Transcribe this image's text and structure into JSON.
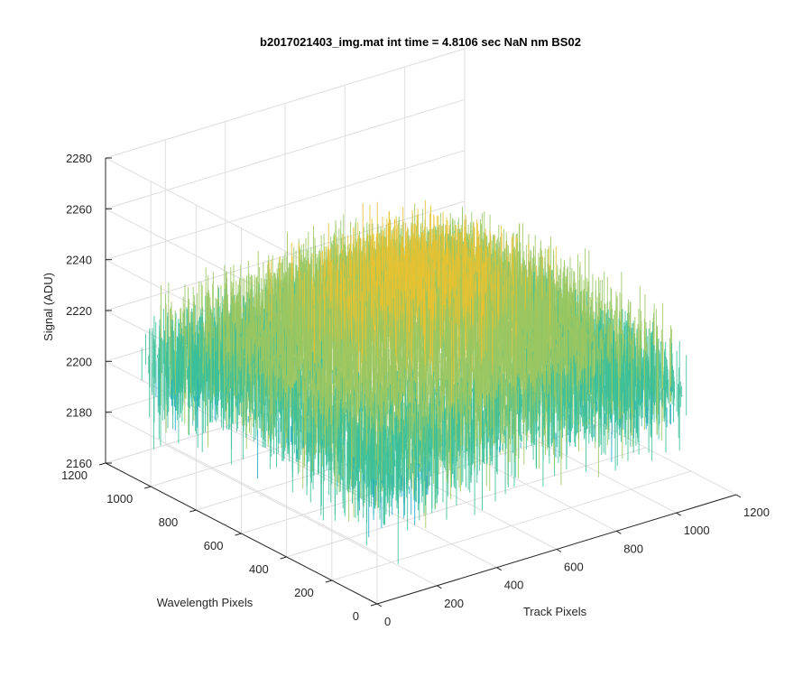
{
  "chart_data": {
    "type": "surface3d",
    "title": "b2017021403_img.mat int time = 4.8106 sec  NaN nm BS02",
    "xlabel": "Track Pixels",
    "ylabel": "Wavelength Pixels",
    "zlabel": "Signal (ADU)",
    "xlim": [
      0,
      1200
    ],
    "ylim": [
      0,
      1200
    ],
    "zlim": [
      2160,
      2280
    ],
    "x_ticks": [
      0,
      200,
      400,
      600,
      800,
      1000,
      1200
    ],
    "y_ticks": [
      0,
      200,
      400,
      600,
      800,
      1000,
      1200
    ],
    "z_ticks": [
      2160,
      2180,
      2200,
      2220,
      2240,
      2260,
      2280
    ],
    "data_extent": {
      "x": [
        0,
        1024
      ],
      "y": [
        0,
        1024
      ]
    },
    "surface_summary": {
      "mean_signal": 2220,
      "min_signal": 2165,
      "max_signal": 2270,
      "center_peak_signal": 2250,
      "edge_signal": 2215
    },
    "colormap": [
      "#1f6fd6",
      "#1aa8c9",
      "#3bbf9a",
      "#9ac762",
      "#e6c233"
    ],
    "grid": true
  }
}
